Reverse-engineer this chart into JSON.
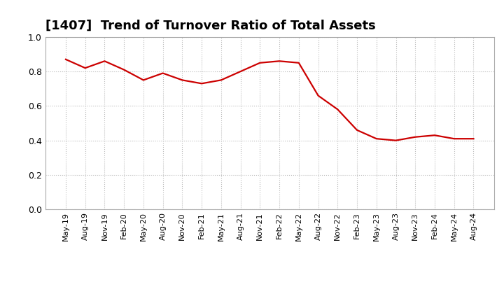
{
  "title": "[1407]  Trend of Turnover Ratio of Total Assets",
  "title_fontsize": 13,
  "line_color": "#cc0000",
  "line_width": 1.6,
  "background_color": "#ffffff",
  "grid_color": "#bbbbbb",
  "ylim": [
    0.0,
    1.0
  ],
  "yticks": [
    0.0,
    0.2,
    0.4,
    0.6,
    0.8,
    1.0
  ],
  "values": [
    0.87,
    0.82,
    0.86,
    0.81,
    0.75,
    0.79,
    0.75,
    0.73,
    0.75,
    0.8,
    0.85,
    0.86,
    0.85,
    0.66,
    0.58,
    0.46,
    0.41,
    0.4,
    0.42,
    0.43,
    0.41,
    0.41
  ],
  "xtick_labels": [
    "May-19",
    "Aug-19",
    "Nov-19",
    "Feb-20",
    "May-20",
    "Aug-20",
    "Nov-20",
    "Feb-21",
    "May-21",
    "Aug-21",
    "Nov-21",
    "Feb-22",
    "May-22",
    "Aug-22",
    "Nov-22",
    "Feb-23",
    "May-23",
    "Aug-23",
    "Nov-23",
    "Feb-24",
    "May-24",
    "Aug-24"
  ]
}
